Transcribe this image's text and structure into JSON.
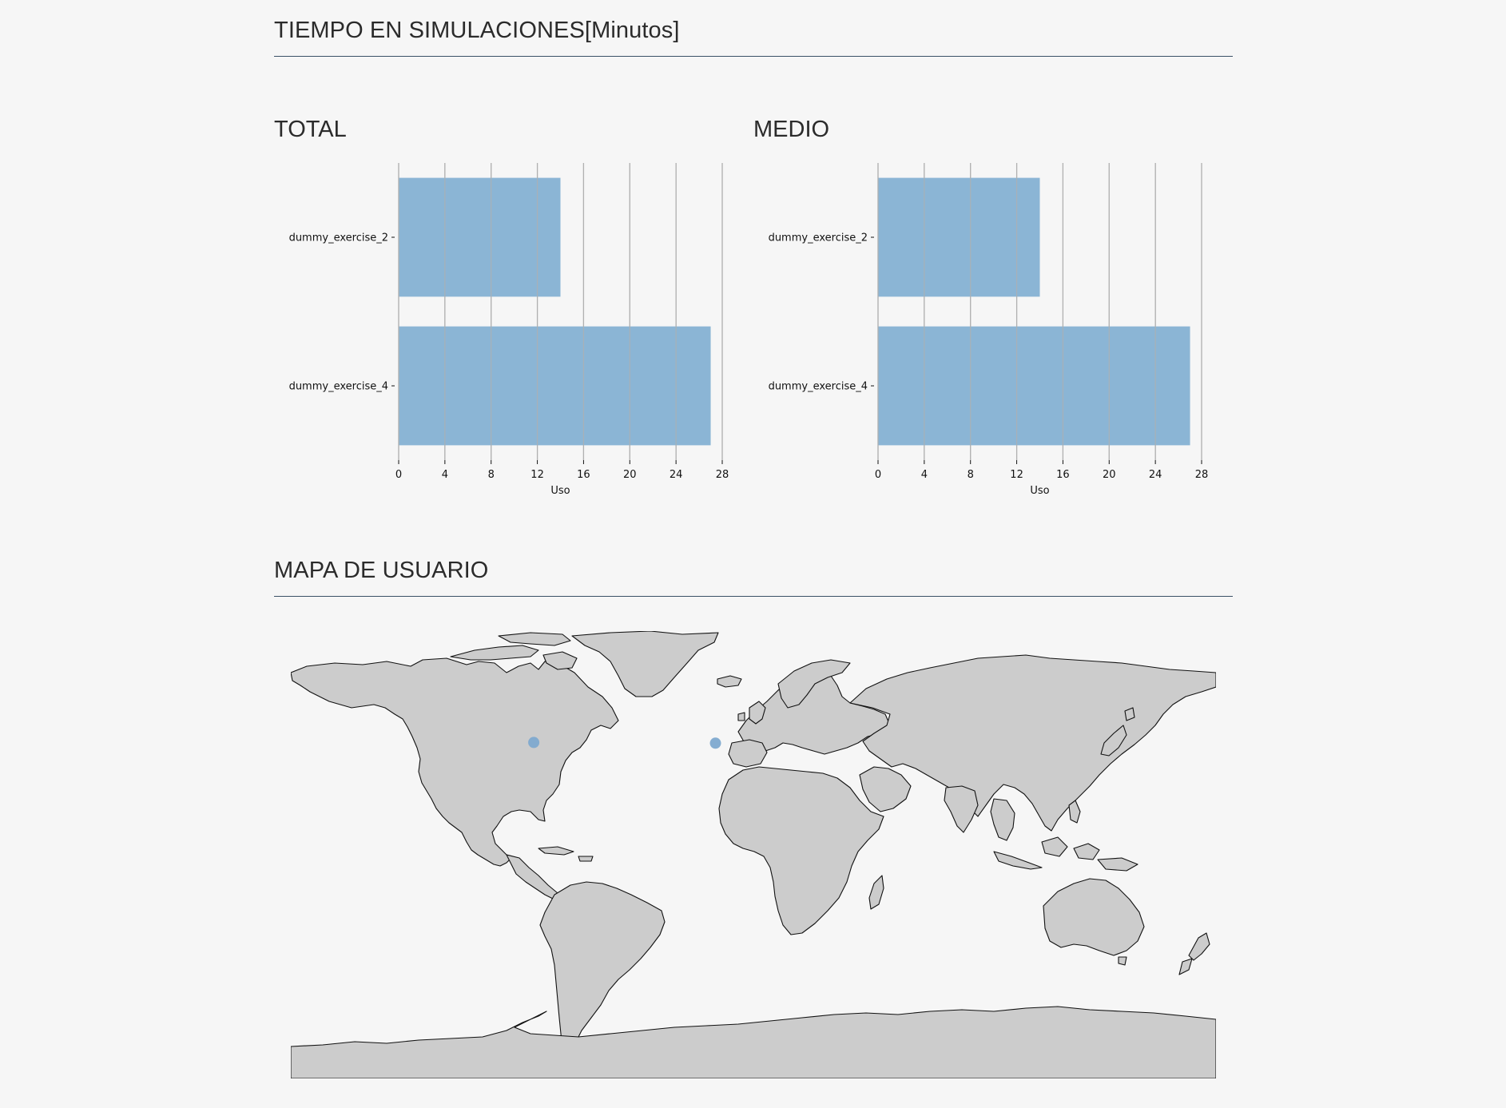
{
  "sections": {
    "time_title": "TIEMPO EN SIMULACIONES[Minutos]",
    "map_title": "MAPA DE USUARIO"
  },
  "colors": {
    "bar": "#8bb5d5",
    "grid": "#b0b0b0",
    "rule": "#3a5166",
    "land": "#cccccc",
    "point": "#7ea9cf"
  },
  "chart_data": [
    {
      "type": "bar",
      "orientation": "horizontal",
      "title": "TOTAL",
      "categories": [
        "dummy_exercise_2",
        "dummy_exercise_4"
      ],
      "values": [
        14,
        27
      ],
      "xlabel": "Uso",
      "xticks": [
        0,
        4,
        8,
        12,
        16,
        20,
        24,
        28
      ],
      "xlim": [
        0,
        28
      ],
      "grid": "vertical"
    },
    {
      "type": "bar",
      "orientation": "horizontal",
      "title": "MEDIO",
      "categories": [
        "dummy_exercise_2",
        "dummy_exercise_4"
      ],
      "values": [
        14,
        27
      ],
      "xlabel": "Uso",
      "xticks": [
        0,
        4,
        8,
        12,
        16,
        20,
        24,
        28
      ],
      "xlim": [
        0,
        28
      ],
      "grid": "vertical"
    }
  ],
  "map": {
    "type": "scatter-geo",
    "points": [
      {
        "lon": -74.0,
        "lat": 40.7
      },
      {
        "lon": -3.7,
        "lat": 40.4
      }
    ]
  }
}
